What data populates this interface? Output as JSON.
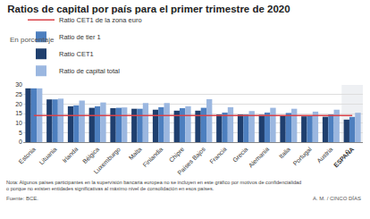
{
  "chart_data": {
    "type": "bar",
    "title": "Ratios de capital por país para el primer trimestre de 2020",
    "subtitle": "En porcentaje",
    "categories": [
      "Estonia",
      "Lituania",
      "Irlanda",
      "Bélgica",
      "Luxemburgo",
      "Malta",
      "Finlandia",
      "Chipre",
      "Países Bajos",
      "Francia",
      "Grecia",
      "Alemania",
      "Italia",
      "Portugal",
      "Austria",
      "ESPAÑA"
    ],
    "series": [
      {
        "name": "Ratio CET1 de la zona euro",
        "type": "line",
        "color": "#d9434a",
        "values": [
          14,
          14,
          14,
          14,
          14,
          14,
          14,
          14,
          14,
          14,
          14,
          14,
          14,
          14,
          14,
          14
        ]
      },
      {
        "name": "Ratio CET1",
        "type": "bar",
        "color": "#1f3f6e",
        "values": [
          28.2,
          22.4,
          18.8,
          18.0,
          17.8,
          17.5,
          17.0,
          16.5,
          16.5,
          14.5,
          14.5,
          14.3,
          14.0,
          13.5,
          13.3,
          11.8
        ]
      },
      {
        "name": "Ratio de tier 1",
        "type": "bar",
        "color": "#4d7fbf",
        "values": [
          28.2,
          22.4,
          19.3,
          18.8,
          18.0,
          17.5,
          18.3,
          17.8,
          18.0,
          15.5,
          14.5,
          15.5,
          15.3,
          13.8,
          14.5,
          13.2
        ]
      },
      {
        "name": "Ratio de capital total",
        "type": "bar",
        "color": "#9bb7e0",
        "values": [
          28.2,
          22.8,
          21.8,
          20.8,
          18.2,
          20.5,
          20.5,
          18.8,
          22.5,
          18.3,
          16.3,
          18.0,
          17.5,
          16.0,
          17.0,
          15.4
        ]
      }
    ],
    "ylim": [
      0,
      30
    ],
    "yticks": [
      0,
      5,
      10,
      15,
      20,
      25,
      30
    ],
    "grid": true,
    "legend": "top",
    "note": [
      "Nota: Algunos países participantes en la supervisión bancaria europea no se incluyen en este gráfico por motivos de confidencialidad",
      "o porque no existen entidades significativas al máximo nivel de consolidación en esos países."
    ],
    "source": "Fuente: BCE.",
    "credit": "A. M. / CINCO DÍAS"
  }
}
